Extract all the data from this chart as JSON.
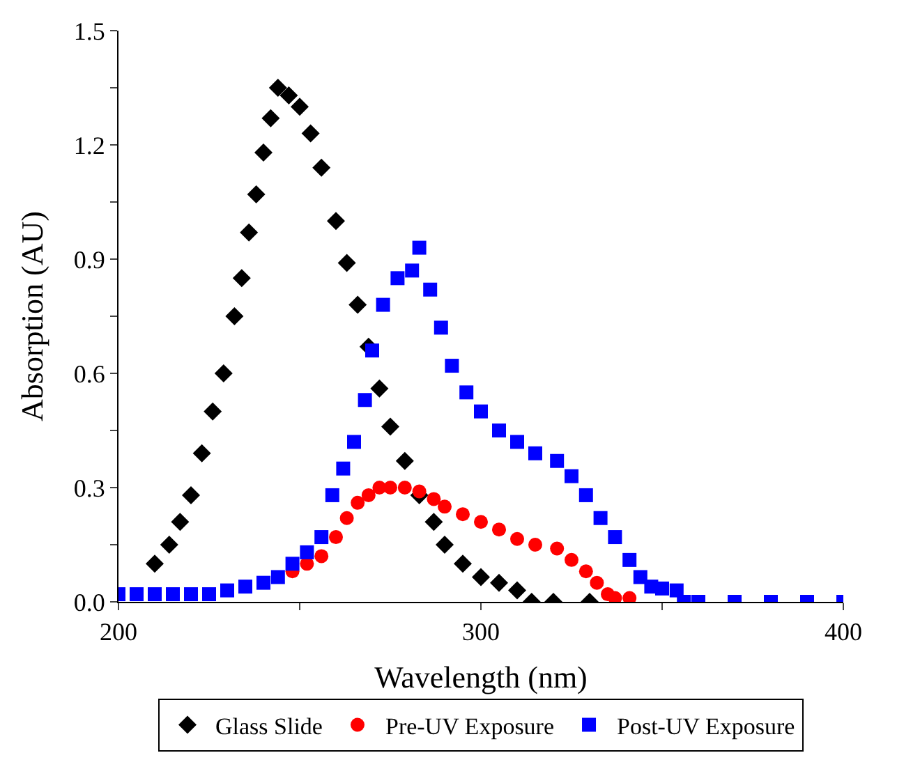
{
  "chart_data": {
    "type": "scatter",
    "xlabel": "Wavelength (nm)",
    "ylabel": "Absorption (AU)",
    "xlim": [
      200,
      400
    ],
    "xticks": [
      200,
      {
        "value": 250,
        "label": null
      },
      300,
      {
        "value": 350,
        "label": null
      },
      400
    ],
    "ylim": [
      0,
      1.5
    ],
    "yticks": [
      {
        "value": 0,
        "label": "0.0"
      },
      {
        "value": 0.15,
        "label": null
      },
      0.3,
      {
        "value": 0.45,
        "label": null
      },
      0.6,
      {
        "value": 0.75,
        "label": null
      },
      0.9,
      {
        "value": 1.05,
        "label": null
      },
      1.2,
      {
        "value": 1.35,
        "label": null
      },
      1.5
    ],
    "grid": false,
    "legend": "bottom",
    "series": [
      {
        "name": "Glass Slide",
        "color": "#000000",
        "marker": "diamond",
        "x": [
          210,
          214,
          217,
          220,
          223,
          226,
          229,
          232,
          234,
          236,
          238,
          240,
          242,
          244,
          247,
          250,
          253,
          256,
          260,
          263,
          266,
          269,
          272,
          275,
          279,
          283,
          287,
          290,
          295,
          300,
          305,
          310,
          314,
          320,
          330
        ],
        "values": [
          0.1,
          0.15,
          0.21,
          0.28,
          0.39,
          0.5,
          0.6,
          0.75,
          0.85,
          0.97,
          1.07,
          1.18,
          1.27,
          1.35,
          1.33,
          1.3,
          1.23,
          1.14,
          1.0,
          0.89,
          0.78,
          0.67,
          0.56,
          0.46,
          0.37,
          0.28,
          0.21,
          0.15,
          0.1,
          0.065,
          0.05,
          0.03,
          0.0,
          0.0,
          0.0
        ]
      },
      {
        "name": "Pre-UV Exposure",
        "color": "#ff0000",
        "marker": "circle",
        "x": [
          248,
          252,
          256,
          260,
          263,
          266,
          269,
          272,
          275,
          279,
          283,
          287,
          290,
          295,
          300,
          305,
          310,
          315,
          321,
          325,
          329,
          332,
          335,
          337,
          341
        ],
        "values": [
          0.08,
          0.1,
          0.12,
          0.17,
          0.22,
          0.26,
          0.28,
          0.3,
          0.3,
          0.3,
          0.29,
          0.27,
          0.25,
          0.23,
          0.21,
          0.19,
          0.165,
          0.15,
          0.14,
          0.11,
          0.08,
          0.05,
          0.02,
          0.01,
          0.01
        ]
      },
      {
        "name": "Post-UV Exposure",
        "color": "#0000ff",
        "marker": "square",
        "x": [
          200,
          205,
          210,
          215,
          220,
          225,
          230,
          235,
          240,
          244,
          248,
          252,
          256,
          259,
          262,
          265,
          268,
          270,
          273,
          277,
          281,
          283,
          286,
          289,
          292,
          296,
          300,
          305,
          310,
          315,
          321,
          325,
          329,
          333,
          337,
          341,
          344,
          347,
          350,
          354,
          356,
          360,
          370,
          380,
          390,
          400
        ],
        "values": [
          0.02,
          0.02,
          0.02,
          0.02,
          0.02,
          0.02,
          0.03,
          0.04,
          0.05,
          0.065,
          0.1,
          0.13,
          0.17,
          0.28,
          0.35,
          0.42,
          0.53,
          0.66,
          0.78,
          0.85,
          0.87,
          0.93,
          0.82,
          0.72,
          0.62,
          0.55,
          0.5,
          0.45,
          0.42,
          0.39,
          0.37,
          0.33,
          0.28,
          0.22,
          0.17,
          0.11,
          0.065,
          0.04,
          0.035,
          0.03,
          0.0,
          0.0,
          0.0,
          0.0,
          0.0,
          0.0
        ]
      }
    ]
  }
}
